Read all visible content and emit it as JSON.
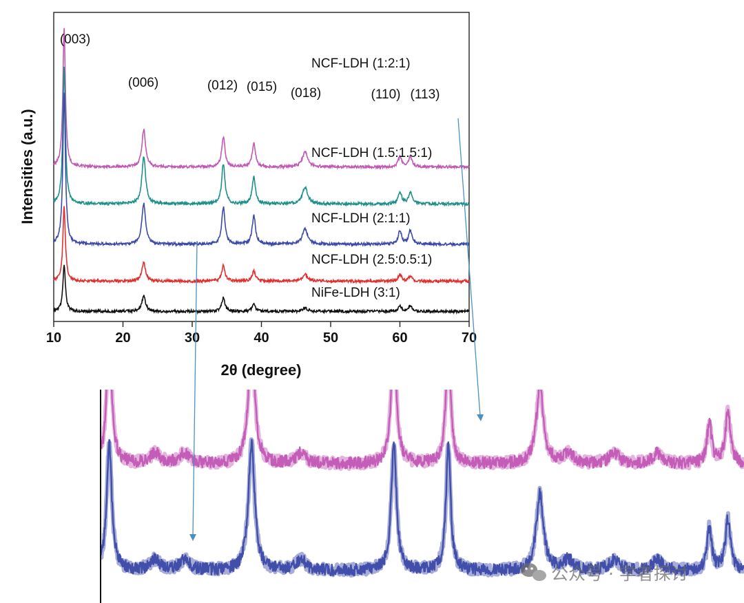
{
  "chart_data": [
    {
      "type": "line",
      "xlabel": "2θ (degree)",
      "ylabel": "Intensities (a.u.)",
      "xlim": [
        10,
        70
      ],
      "xticks": [
        10,
        20,
        30,
        40,
        50,
        60,
        70
      ],
      "grid": false,
      "legend": "inline labels beside each trace",
      "peak_labels": [
        {
          "text": "(003)",
          "x": 11.5
        },
        {
          "text": "(006)",
          "x": 23.0
        },
        {
          "text": "(012)",
          "x": 34.5
        },
        {
          "text": "(015)",
          "x": 38.9
        },
        {
          "text": "(018)",
          "x": 46.3
        },
        {
          "text": "(110)",
          "x": 60.0
        },
        {
          "text": "(113)",
          "x": 61.5
        }
      ],
      "peak_positions": [
        11.5,
        23.0,
        34.5,
        38.9,
        46.3,
        60.0,
        61.5
      ],
      "series": [
        {
          "name": "NCF-LDH (1:2:1)",
          "color": "#c158b4",
          "baseline": 8.6,
          "peak_heights": [
            8.2,
            2.2,
            1.8,
            1.4,
            0.9,
            0.6,
            0.6
          ]
        },
        {
          "name": "NCF-LDH (1.5:1.5:1)",
          "color": "#1f8f8a",
          "baseline": 6.4,
          "peak_heights": [
            8.2,
            2.8,
            2.4,
            1.6,
            1.0,
            0.7,
            0.7
          ]
        },
        {
          "name": "NCF-LDH (2:1:1)",
          "color": "#3b4aa8",
          "baseline": 4.0,
          "peak_heights": [
            9.0,
            2.4,
            2.2,
            1.7,
            0.9,
            0.8,
            0.8
          ]
        },
        {
          "name": "NCF-LDH (2.5:0.5:1)",
          "color": "#e03030",
          "baseline": 1.8,
          "peak_heights": [
            4.4,
            1.1,
            0.9,
            0.6,
            0.4,
            0.4,
            0.3
          ]
        },
        {
          "name": "NiFe-LDH (3:1)",
          "color": "#111111",
          "baseline": 0.0,
          "peak_heights": [
            2.8,
            0.9,
            0.8,
            0.4,
            0.2,
            0.3,
            0.3
          ]
        }
      ],
      "ylim": [
        -0.6,
        17.8
      ]
    },
    {
      "type": "line",
      "xlim": [
        10,
        70
      ],
      "ylim": [
        0,
        10
      ],
      "grid": false,
      "peak_positions": [
        11.5,
        23.0,
        34.5,
        38.9,
        46.3,
        60.0,
        61.5
      ],
      "series": [
        {
          "color": "#c158b4",
          "baseline": 6.5,
          "peak_heights": [
            6.0,
            6.0,
            6.0,
            6.0,
            3.6,
            2.0,
            2.4
          ]
        },
        {
          "color": "#3b4aa8",
          "baseline": 1.5,
          "peak_heights": [
            6.0,
            6.0,
            6.0,
            6.0,
            3.6,
            2.0,
            2.4
          ]
        }
      ]
    }
  ],
  "watermark": {
    "text": "公众号 · 学者探讨",
    "icon": "wechat-icon"
  }
}
